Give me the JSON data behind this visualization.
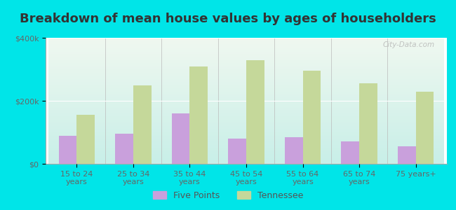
{
  "title": "Breakdown of mean house values by ages of householders",
  "categories": [
    "15 to 24\nyears",
    "25 to 34\nyears",
    "35 to 44\nyears",
    "45 to 54\nyears",
    "55 to 64\nyears",
    "65 to 74\nyears",
    "75 years+"
  ],
  "five_points": [
    90000,
    95000,
    160000,
    80000,
    85000,
    72000,
    55000
  ],
  "tennessee": [
    155000,
    250000,
    310000,
    330000,
    295000,
    255000,
    230000
  ],
  "five_points_color": "#c9a0dc",
  "tennessee_color": "#c5d89a",
  "grad_top": "#f0f8f0",
  "grad_bottom": "#c8efe8",
  "outer_bg": "#00e5e8",
  "ylim": [
    0,
    400000
  ],
  "yticks": [
    0,
    200000,
    400000
  ],
  "ytick_labels": [
    "$0",
    "$200k",
    "$400k"
  ],
  "legend_labels": [
    "Five Points",
    "Tennessee"
  ],
  "watermark": "City-Data.com",
  "title_fontsize": 13,
  "tick_fontsize": 8,
  "legend_fontsize": 9,
  "bar_width": 0.32
}
